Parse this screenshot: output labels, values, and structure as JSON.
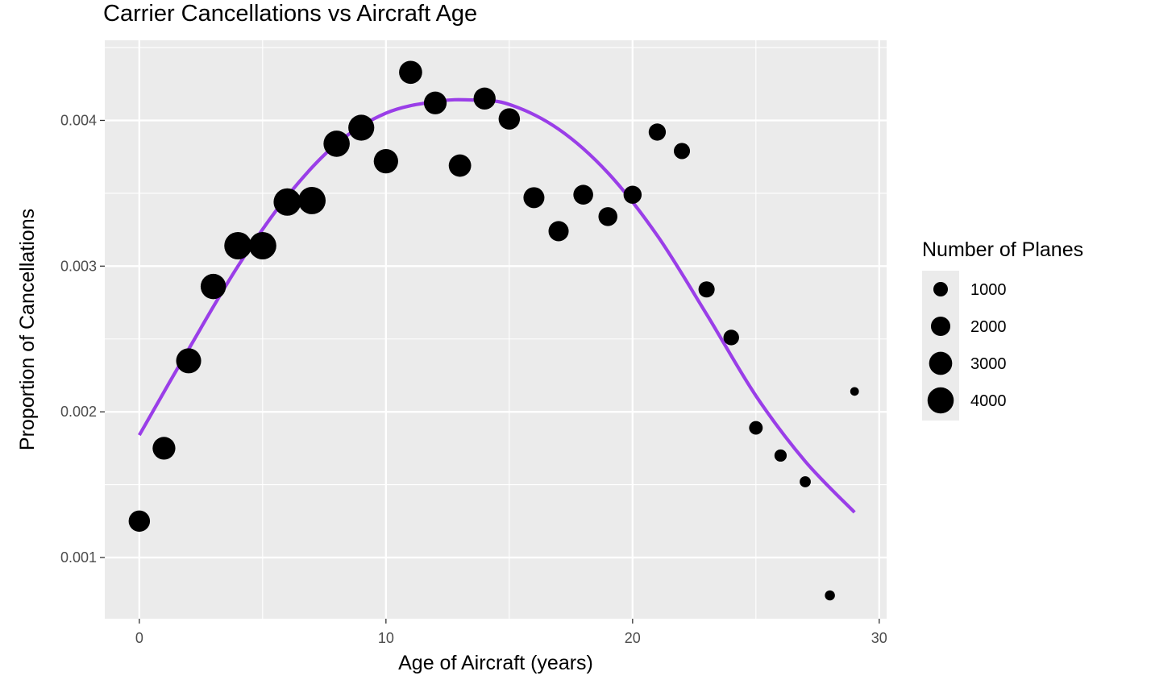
{
  "chart_data": {
    "type": "scatter",
    "title": "Carrier Cancellations vs Aircraft Age",
    "xlabel": "Age of Aircraft (years)",
    "ylabel": "Proportion of Cancellations",
    "xlim": [
      -1.4,
      30.3
    ],
    "ylim": [
      0.00058,
      0.00455
    ],
    "x_ticks": [
      0,
      10,
      20,
      30
    ],
    "x_tick_labels": [
      "0",
      "10",
      "20",
      "30"
    ],
    "y_ticks": [
      0.001,
      0.002,
      0.003,
      0.004
    ],
    "y_tick_labels": [
      "0.001",
      "0.002",
      "0.003",
      "0.004"
    ],
    "grid": true,
    "legend_position": "right",
    "legend": {
      "title": "Number of Planes",
      "entries": [
        {
          "label": "1000",
          "value": 1000
        },
        {
          "label": "2000",
          "value": 2000
        },
        {
          "label": "3000",
          "value": 3000
        },
        {
          "label": "4000",
          "value": 4000
        }
      ]
    },
    "size_range": {
      "min_planes": 200,
      "max_planes": 4700
    },
    "points": [
      {
        "x": 0,
        "y": 0.00125,
        "planes": 2500
      },
      {
        "x": 1,
        "y": 0.00175,
        "planes": 2900
      },
      {
        "x": 2,
        "y": 0.00235,
        "planes": 3600
      },
      {
        "x": 3,
        "y": 0.00286,
        "planes": 3700
      },
      {
        "x": 4,
        "y": 0.00314,
        "planes": 4400
      },
      {
        "x": 5,
        "y": 0.00314,
        "planes": 4400
      },
      {
        "x": 6,
        "y": 0.00344,
        "planes": 4400
      },
      {
        "x": 7,
        "y": 0.00345,
        "planes": 4400
      },
      {
        "x": 8,
        "y": 0.00384,
        "planes": 4000
      },
      {
        "x": 9,
        "y": 0.00395,
        "planes": 3900
      },
      {
        "x": 10,
        "y": 0.00372,
        "planes": 3400
      },
      {
        "x": 11,
        "y": 0.00433,
        "planes": 3000
      },
      {
        "x": 12,
        "y": 0.00412,
        "planes": 2900
      },
      {
        "x": 13,
        "y": 0.00369,
        "planes": 2800
      },
      {
        "x": 14,
        "y": 0.00415,
        "planes": 2700
      },
      {
        "x": 15,
        "y": 0.00401,
        "planes": 2500
      },
      {
        "x": 16,
        "y": 0.00347,
        "planes": 2400
      },
      {
        "x": 17,
        "y": 0.00324,
        "planes": 2200
      },
      {
        "x": 18,
        "y": 0.00349,
        "planes": 2100
      },
      {
        "x": 19,
        "y": 0.00334,
        "planes": 1900
      },
      {
        "x": 20,
        "y": 0.00349,
        "planes": 1700
      },
      {
        "x": 21,
        "y": 0.00392,
        "planes": 1500
      },
      {
        "x": 22,
        "y": 0.00379,
        "planes": 1300
      },
      {
        "x": 23,
        "y": 0.00284,
        "planes": 1300
      },
      {
        "x": 24,
        "y": 0.00251,
        "planes": 1200
      },
      {
        "x": 25,
        "y": 0.00189,
        "planes": 850
      },
      {
        "x": 26,
        "y": 0.0017,
        "planes": 650
      },
      {
        "x": 27,
        "y": 0.00152,
        "planes": 500
      },
      {
        "x": 28,
        "y": 0.00074,
        "planes": 380
      },
      {
        "x": 29,
        "y": 0.00214,
        "planes": 250
      }
    ],
    "fit_curve": {
      "color": "#9a3ee8",
      "points": [
        {
          "x": 0,
          "y": 0.00184
        },
        {
          "x": 2,
          "y": 0.00243
        },
        {
          "x": 4,
          "y": 0.003
        },
        {
          "x": 6,
          "y": 0.00348
        },
        {
          "x": 8,
          "y": 0.00384
        },
        {
          "x": 10,
          "y": 0.00405
        },
        {
          "x": 12,
          "y": 0.00413
        },
        {
          "x": 13.5,
          "y": 0.00414
        },
        {
          "x": 15,
          "y": 0.00411
        },
        {
          "x": 17,
          "y": 0.00394
        },
        {
          "x": 19,
          "y": 0.00364
        },
        {
          "x": 21,
          "y": 0.00321
        },
        {
          "x": 23,
          "y": 0.00267
        },
        {
          "x": 25,
          "y": 0.00211
        },
        {
          "x": 27,
          "y": 0.00166
        },
        {
          "x": 29,
          "y": 0.00131
        }
      ]
    },
    "colors": {
      "panel_background": "#ebebeb",
      "grid_major": "#ffffff",
      "point": "#000000",
      "curve": "#9a3ee8"
    }
  }
}
